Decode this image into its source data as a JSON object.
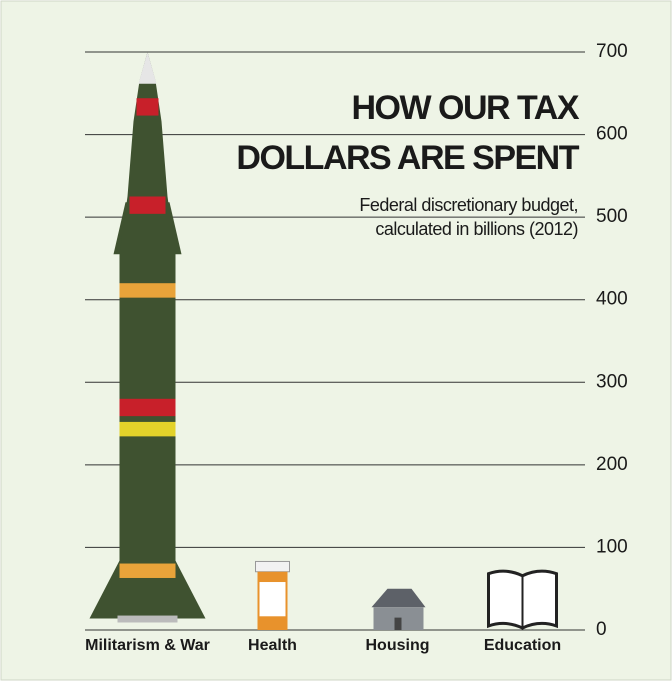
{
  "chart_data": {
    "type": "bar",
    "title": [
      "HOW OUR TAX",
      "DOLLARS ARE SPENT"
    ],
    "subtitle": [
      "Federal discretionary budget,",
      "calculated in billions (2012)"
    ],
    "categories": [
      "Militarism & War",
      "Health",
      "Housing",
      "Education"
    ],
    "values": [
      700,
      83,
      50,
      73
    ],
    "colors": [
      "#3f5230",
      "#e8922c",
      "#8a8f94",
      "#ffffff"
    ],
    "ylim": [
      0,
      700
    ],
    "yticks": [
      0,
      100,
      200,
      300,
      400,
      500,
      600,
      700
    ],
    "grid": true
  }
}
